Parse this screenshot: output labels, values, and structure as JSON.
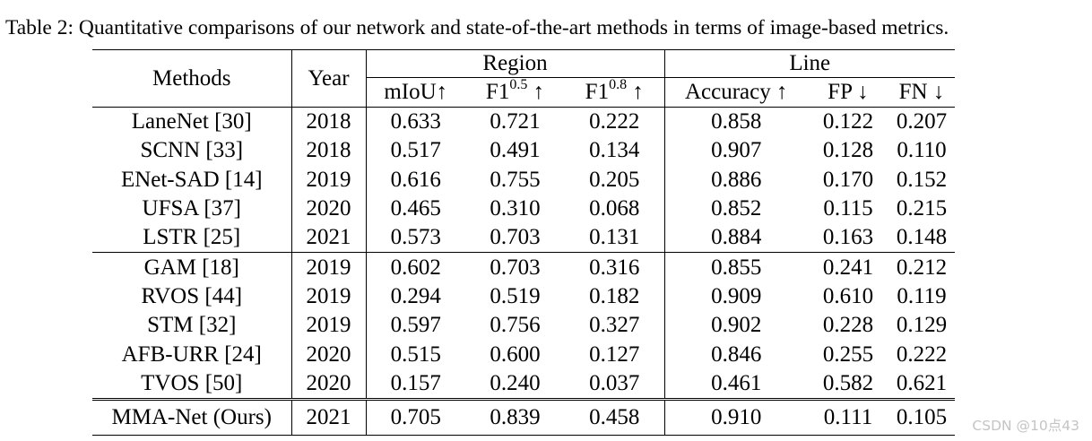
{
  "caption": "Table 2: Quantitative comparisons of our network and state-of-the-art methods in terms of image-based metrics.",
  "headers": {
    "methods": "Methods",
    "year": "Year",
    "region": "Region",
    "line": "Line",
    "miou": "mIoU↑",
    "f1_base": "F1",
    "f1_05_sup": "0.5",
    "f1_08_sup": "0.8",
    "up_arrow": " ↑",
    "accuracy": "Accuracy ↑",
    "fp": "FP ↓",
    "fn": "FN ↓"
  },
  "rows": [
    {
      "method": "LaneNet [30]",
      "year": "2018",
      "miou": "0.633",
      "f105": "0.721",
      "f108": "0.222",
      "acc": "0.858",
      "fp": "0.122",
      "fn": "0.207"
    },
    {
      "method": "SCNN [33]",
      "year": "2018",
      "miou": "0.517",
      "f105": "0.491",
      "f108": "0.134",
      "acc": "0.907",
      "fp": "0.128",
      "fn": "0.110"
    },
    {
      "method": "ENet-SAD [14]",
      "year": "2019",
      "miou": "0.616",
      "f105": "0.755",
      "f108": "0.205",
      "acc": "0.886",
      "fp": "0.170",
      "fn": "0.152"
    },
    {
      "method": "UFSA [37]",
      "year": "2020",
      "miou": "0.465",
      "f105": "0.310",
      "f108": "0.068",
      "acc": "0.852",
      "fp": "0.115",
      "fn": "0.215"
    },
    {
      "method": "LSTR [25]",
      "year": "2021",
      "miou": "0.573",
      "f105": "0.703",
      "f108": "0.131",
      "acc": "0.884",
      "fp": "0.163",
      "fn": "0.148"
    },
    {
      "method": "GAM [18]",
      "year": "2019",
      "miou": "0.602",
      "f105": "0.703",
      "f108": "0.316",
      "acc": "0.855",
      "fp": "0.241",
      "fn": "0.212"
    },
    {
      "method": "RVOS [44]",
      "year": "2019",
      "miou": "0.294",
      "f105": "0.519",
      "f108": "0.182",
      "acc": "0.909",
      "fp": "0.610",
      "fn": "0.119"
    },
    {
      "method": "STM [32]",
      "year": "2019",
      "miou": "0.597",
      "f105": "0.756",
      "f108": "0.327",
      "acc": "0.902",
      "fp": "0.228",
      "fn": "0.129"
    },
    {
      "method": "AFB-URR [24]",
      "year": "2020",
      "miou": "0.515",
      "f105": "0.600",
      "f108": "0.127",
      "acc": "0.846",
      "fp": "0.255",
      "fn": "0.222"
    },
    {
      "method": "TVOS [50]",
      "year": "2020",
      "miou": "0.157",
      "f105": "0.240",
      "f108": "0.037",
      "acc": "0.461",
      "fp": "0.582",
      "fn": "0.621"
    },
    {
      "method": "MMA-Net (Ours)",
      "year": "2021",
      "miou": "0.705",
      "f105": "0.839",
      "f108": "0.458",
      "acc": "0.910",
      "fp": "0.111",
      "fn": "0.105"
    }
  ],
  "watermark": "CSDN @10点43"
}
